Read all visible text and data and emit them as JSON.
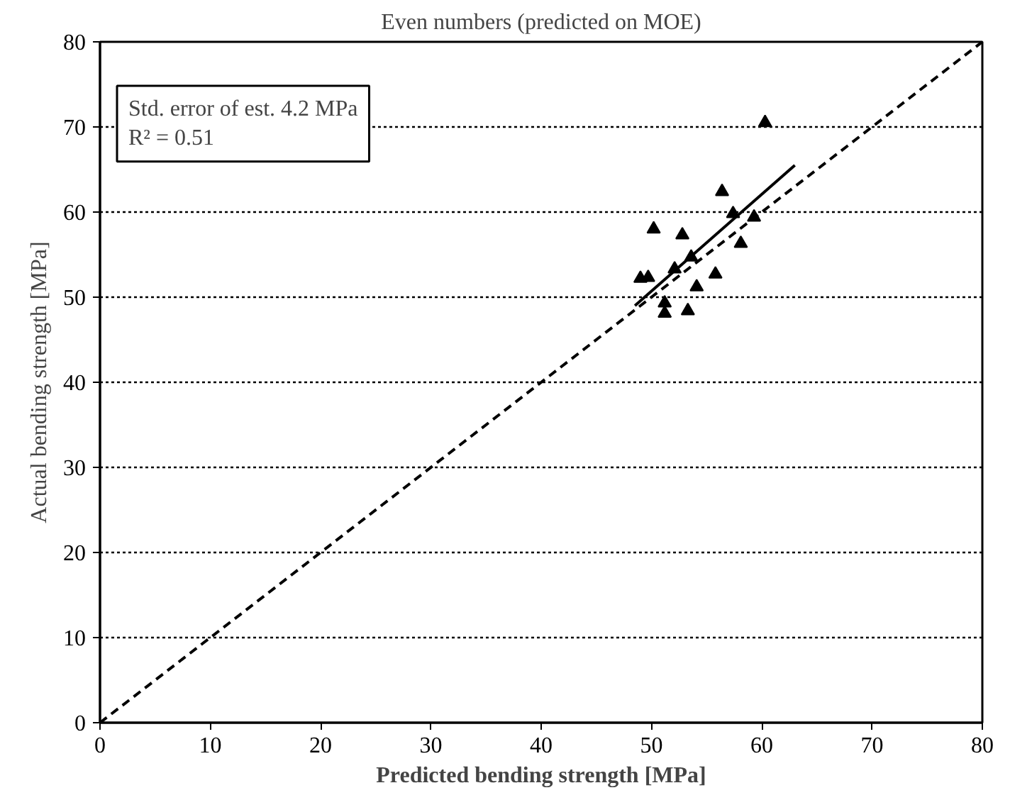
{
  "chart_data": {
    "type": "scatter",
    "title": "Even numbers (predicted on MOE)",
    "xlabel": "Predicted bending strength [MPa]",
    "ylabel": "Actual bending strength [MPa]",
    "annotations": [
      "Std. error of est. 4.2 MPa",
      "R² = 0.51"
    ],
    "xlim": [
      0,
      80
    ],
    "ylim": [
      0,
      80
    ],
    "xticks": [
      0,
      10,
      20,
      30,
      40,
      50,
      60,
      70,
      80
    ],
    "yticks": [
      0,
      10,
      20,
      30,
      40,
      50,
      60,
      70,
      80
    ],
    "grid": "y",
    "series": [
      {
        "type": "scatter",
        "marker": "triangle",
        "color": "#000000",
        "x": [
          56.4,
          59.3,
          57.4,
          50.2,
          52.8,
          58.1,
          53.6,
          52.1,
          49.0,
          49.7,
          55.8,
          54.1,
          51.2,
          51.2,
          53.3,
          60.3
        ],
        "values": [
          62.4,
          59.4,
          59.8,
          58.0,
          57.3,
          56.3,
          54.7,
          53.3,
          52.2,
          52.3,
          52.7,
          51.2,
          49.3,
          48.1,
          48.4,
          70.5
        ]
      },
      {
        "type": "line",
        "line_style": "solid",
        "color": "#000000",
        "x": [
          48.5,
          63
        ],
        "values": [
          49,
          65.5
        ]
      },
      {
        "type": "line",
        "line_style": "dashed",
        "color": "#000000",
        "x": [
          0,
          80
        ],
        "values": [
          0,
          80
        ]
      }
    ]
  }
}
